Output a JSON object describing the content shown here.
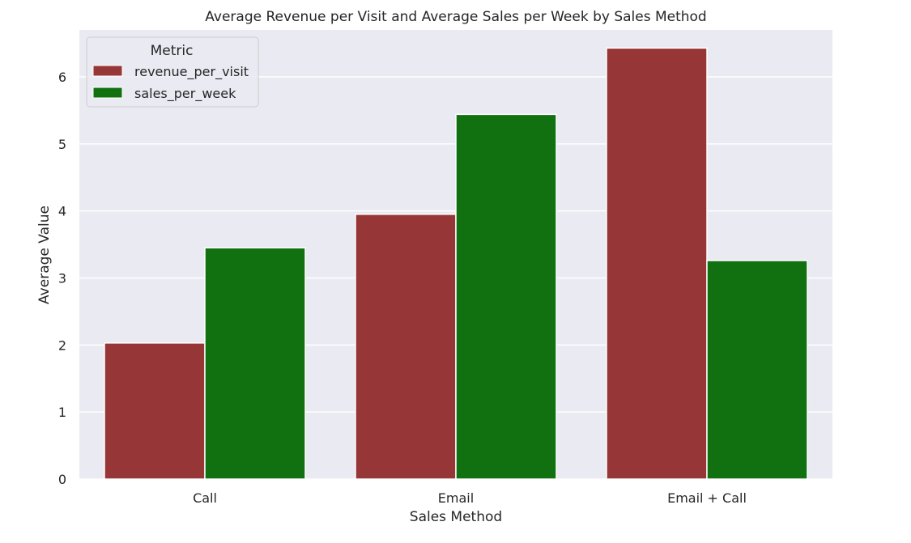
{
  "chart_data": {
    "type": "bar",
    "title": "Average Revenue per Visit and Average Sales per Week by Sales Method",
    "xlabel": "Sales Method",
    "ylabel": "Average Value",
    "categories": [
      "Call",
      "Email",
      "Email + Call"
    ],
    "series": [
      {
        "name": "revenue_per_visit",
        "color": "#973636",
        "values": [
          2.03,
          3.95,
          6.43
        ]
      },
      {
        "name": "sales_per_week",
        "color": "#117111",
        "values": [
          3.45,
          5.44,
          3.26
        ]
      }
    ],
    "ylim": [
      0,
      6.7
    ],
    "yticks": [
      0,
      1,
      2,
      3,
      4,
      5,
      6
    ],
    "grid": true,
    "background": "#eaeaf2",
    "legend": {
      "title": "Metric",
      "placement": "top-left"
    }
  }
}
